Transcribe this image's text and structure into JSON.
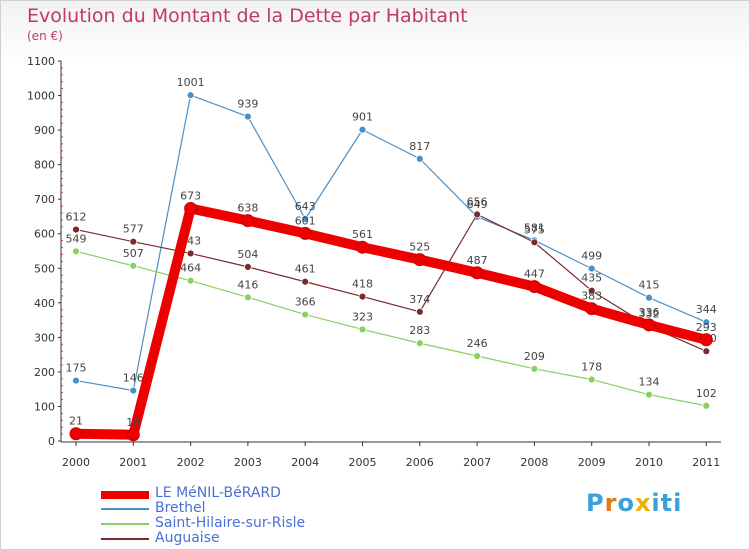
{
  "chart_data": {
    "type": "line",
    "title": "Evolution du Montant de la Dette par Habitant",
    "subtitle": "(en €)",
    "categories": [
      "2000",
      "2001",
      "2002",
      "2003",
      "2004",
      "2005",
      "2006",
      "2007",
      "2008",
      "2009",
      "2010",
      "2011"
    ],
    "ylim": [
      0,
      1100
    ],
    "yticks": [
      0,
      100,
      200,
      300,
      400,
      500,
      600,
      700,
      800,
      900,
      1000,
      1100
    ],
    "grid": false,
    "series": [
      {
        "name": "Brethel",
        "color": "#4a90c8",
        "values": [
          175,
          146,
          1001,
          939,
          643,
          901,
          817,
          649,
          581,
          499,
          415,
          344
        ]
      },
      {
        "name": "Saint-Hilaire-sur-Risle",
        "color": "#88d060",
        "values": [
          549,
          507,
          464,
          416,
          366,
          323,
          283,
          246,
          209,
          178,
          134,
          102
        ]
      },
      {
        "name": "Auguaise",
        "color": "#7a2a2a",
        "values": [
          612,
          577,
          543,
          504,
          461,
          418,
          374,
          656,
          575,
          435,
          332,
          260
        ]
      },
      {
        "name": "LE MéNIL-BéRARD",
        "color": "#ee0000",
        "values": [
          21,
          18,
          673,
          638,
          601,
          561,
          525,
          487,
          447,
          383,
          336,
          293
        ]
      }
    ],
    "legend": [
      "LE MéNIL-BéRARD",
      "Brethel",
      "Saint-Hilaire-sur-Risle",
      "Auguaise"
    ]
  },
  "branding": {
    "logo_text": "Proxiti"
  }
}
